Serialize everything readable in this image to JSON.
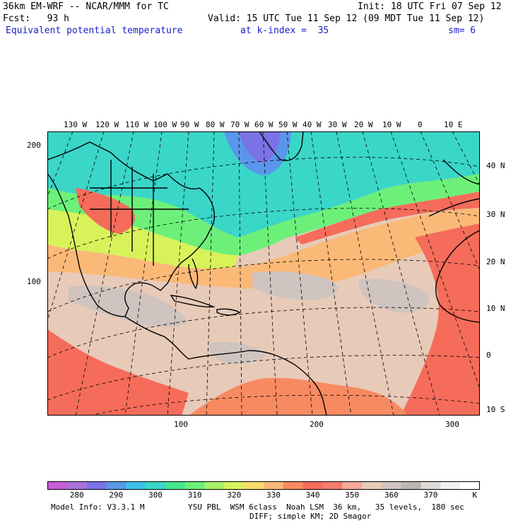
{
  "header": {
    "model_title": "36km EM-WRF -- NCAR/MMM for TC",
    "init": "Init: 18 UTC Fri 07 Sep 12",
    "fcst": "Fcst:   93 h",
    "valid": "Valid: 15 UTC Tue 11 Sep 12 (09 MDT Tue 11 Sep 12)",
    "field": "Equivalent potential temperature",
    "level": "at k-index =  35",
    "smoothing": "sm= 6"
  },
  "map": {
    "top_lon_labels": [
      "130 W",
      "120 W",
      "110 W",
      "100 W",
      "90 W",
      "80 W",
      "70 W",
      "60 W",
      "50 W",
      "40 W",
      "30 W",
      "20 W",
      "10 W",
      "0",
      "10 E"
    ],
    "right_lat_labels": [
      "40 N",
      "30 N",
      "20 N",
      "10 N",
      "0",
      "10 S"
    ],
    "left_grid_labels": [
      "200",
      "100"
    ],
    "bottom_grid_labels": [
      "100",
      "200",
      "300"
    ],
    "colors": {
      "cold": "#3ad6c8",
      "cool": "#6cf07a",
      "mild": "#d8f25a",
      "warm": "#fbb978",
      "hot": "#f56c5a",
      "tropical": "#e8cab8",
      "gray": "#cfc4bf",
      "purple": "#7a72e6"
    }
  },
  "colorbar": {
    "colors": [
      "#c65fd6",
      "#a872dc",
      "#7a72e6",
      "#5a96ea",
      "#3ac2e6",
      "#3ad6c8",
      "#46e68e",
      "#6cf07a",
      "#a8f26a",
      "#d8f25a",
      "#f9dc6a",
      "#fbb978",
      "#f88a62",
      "#f56c5a",
      "#f47c6e",
      "#f5aa98",
      "#e8cab8",
      "#cfc4bf",
      "#bdb7b3",
      "#dedad8",
      "#f2f0f0",
      "#ffffff"
    ],
    "labels": [
      "280",
      "290",
      "300",
      "310",
      "320",
      "330",
      "340",
      "350",
      "360",
      "370"
    ],
    "unit": "K"
  },
  "footer": {
    "line1_left": "Model Info: V3.3.1 M",
    "line1_right": "YSU PBL  WSM 6class  Noah LSM  36 km,   35 levels,  180 sec",
    "line2": "DIFF; simple KM; 2D Smagor"
  }
}
